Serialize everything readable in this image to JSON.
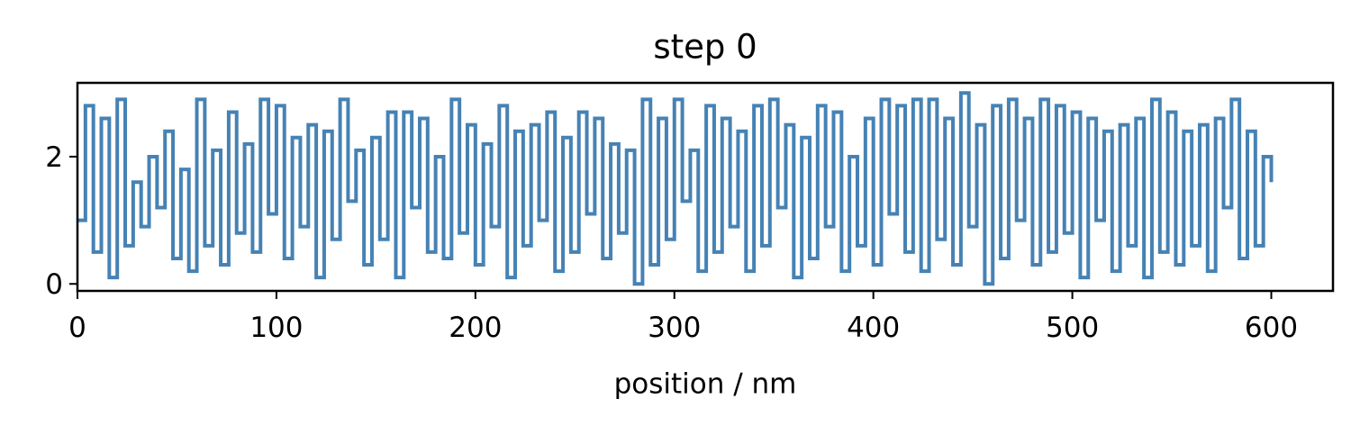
{
  "chart_data": {
    "type": "line",
    "drawstyle": "steps-post",
    "title": "step 0",
    "x_label": "position / nm",
    "color": "#4682b4",
    "x": [
      0,
      4,
      8,
      12,
      16,
      20,
      24,
      28,
      32,
      36,
      40,
      44,
      48,
      52,
      56,
      60,
      64,
      68,
      72,
      76,
      80,
      84,
      88,
      92,
      96,
      100,
      104,
      108,
      112,
      116,
      120,
      124,
      128,
      132,
      136,
      140,
      144,
      148,
      152,
      156,
      160,
      164,
      168,
      172,
      176,
      180,
      184,
      188,
      192,
      196,
      200,
      204,
      208,
      212,
      216,
      220,
      224,
      228,
      232,
      236,
      240,
      244,
      248,
      252,
      256,
      260,
      264,
      268,
      272,
      276,
      280,
      284,
      288,
      292,
      296,
      300,
      304,
      308,
      312,
      316,
      320,
      324,
      328,
      332,
      336,
      340,
      344,
      348,
      352,
      356,
      360,
      364,
      368,
      372,
      376,
      380,
      384,
      388,
      392,
      396,
      400,
      404,
      408,
      412,
      416,
      420,
      424,
      428,
      432,
      436,
      440,
      444,
      448,
      452,
      456,
      460,
      464,
      468,
      472,
      476,
      480,
      484,
      488,
      492,
      496,
      500,
      504,
      508,
      512,
      516,
      520,
      524,
      528,
      532,
      536,
      540,
      544,
      548,
      552,
      556,
      560,
      564,
      568,
      572,
      576,
      580,
      584,
      588,
      592,
      596,
      600
    ],
    "values": [
      1.0,
      2.8,
      0.5,
      2.6,
      0.1,
      2.9,
      0.6,
      1.6,
      0.9,
      2.0,
      1.2,
      2.4,
      0.4,
      1.8,
      0.2,
      2.9,
      0.6,
      2.1,
      0.3,
      2.7,
      0.8,
      2.2,
      0.5,
      2.9,
      1.1,
      2.8,
      0.4,
      2.3,
      0.9,
      2.5,
      0.1,
      2.4,
      0.7,
      2.9,
      1.3,
      2.1,
      0.3,
      2.3,
      0.7,
      2.7,
      0.1,
      2.7,
      1.2,
      2.6,
      0.5,
      2.0,
      0.4,
      2.9,
      0.8,
      2.5,
      0.3,
      2.2,
      0.9,
      2.8,
      0.1,
      2.4,
      0.6,
      2.5,
      1.0,
      2.7,
      0.2,
      2.3,
      0.5,
      2.7,
      1.1,
      2.6,
      0.4,
      2.2,
      0.8,
      2.1,
      0.0,
      2.9,
      0.3,
      2.6,
      0.7,
      2.9,
      1.3,
      2.1,
      0.2,
      2.8,
      0.5,
      2.6,
      0.9,
      2.4,
      0.2,
      2.8,
      0.6,
      2.9,
      1.2,
      2.5,
      0.1,
      2.3,
      0.4,
      2.8,
      0.9,
      2.7,
      0.2,
      2.0,
      0.6,
      2.6,
      0.3,
      2.9,
      1.1,
      2.8,
      0.5,
      2.9,
      0.2,
      2.9,
      0.7,
      2.6,
      0.3,
      3.0,
      0.9,
      2.5,
      0.0,
      2.8,
      0.4,
      2.9,
      1.0,
      2.6,
      0.3,
      2.9,
      0.5,
      2.8,
      0.8,
      2.7,
      0.1,
      2.6,
      1.0,
      2.4,
      0.2,
      2.5,
      0.6,
      2.6,
      0.1,
      2.9,
      0.5,
      2.7,
      0.3,
      2.4,
      0.6,
      2.5,
      0.2,
      2.6,
      1.2,
      2.9,
      0.4,
      2.4,
      0.6,
      2.0,
      1.6
    ],
    "xlim": [
      0,
      631
    ],
    "ylim": [
      -0.11,
      3.16
    ],
    "xticks": [
      0,
      100,
      200,
      300,
      400,
      500,
      600
    ],
    "yticks": [
      0,
      2
    ]
  }
}
